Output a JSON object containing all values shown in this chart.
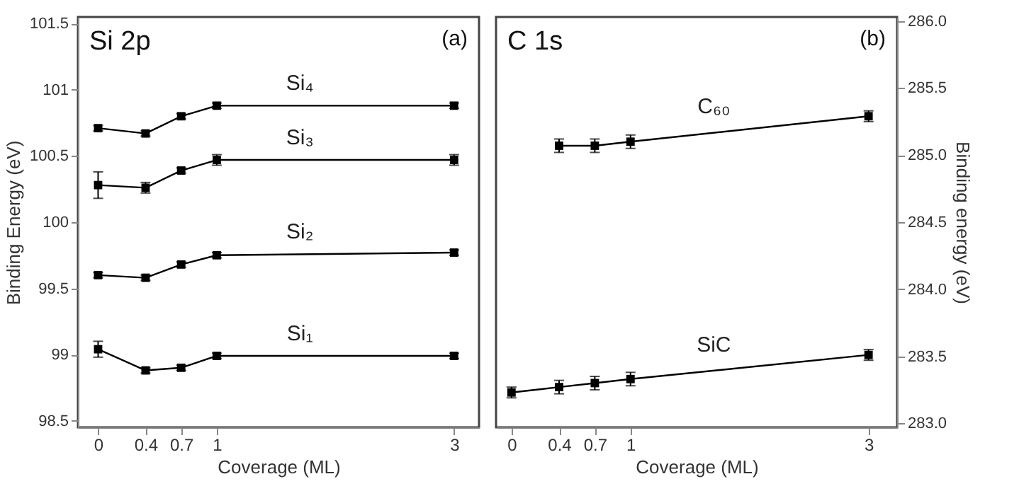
{
  "chart_data": [
    {
      "type": "line",
      "xlabel": "Coverage (ML)",
      "ylabel": "Binding Energy (eV)",
      "annotations": [
        "Si 2p",
        "(a)"
      ],
      "x": [
        0,
        0.4,
        0.7,
        1,
        3
      ],
      "xlim": [
        -0.17,
        3.21
      ],
      "xticks": [
        0,
        0.4,
        0.7,
        1,
        3
      ],
      "ylim": [
        98.45,
        101.55
      ],
      "yticks": [
        98.5,
        99,
        99.5,
        100,
        100.5,
        101,
        101.5
      ],
      "marker": "square",
      "line_style": "solid",
      "grid": false,
      "series": [
        {
          "name": "Si₄",
          "color": "#000000",
          "values": [
            100.71,
            100.67,
            100.8,
            100.88,
            100.88
          ],
          "errors": [
            0.02,
            0.02,
            0.02,
            0.02,
            0.02
          ]
        },
        {
          "name": "Si₃",
          "color": "#000000",
          "values": [
            100.28,
            100.26,
            100.39,
            100.47,
            100.47
          ],
          "errors": [
            0.1,
            0.04,
            0.02,
            0.04,
            0.04
          ]
        },
        {
          "name": "Si₂",
          "color": "#000000",
          "values": [
            99.6,
            99.58,
            99.68,
            99.75,
            99.77
          ],
          "errors": [
            0.02,
            0.02,
            0.02,
            0.02,
            0.02
          ]
        },
        {
          "name": "Si₁",
          "color": "#000000",
          "values": [
            99.04,
            98.88,
            98.9,
            98.99,
            98.99
          ],
          "errors": [
            0.06,
            0.02,
            0.02,
            0.02,
            0.02
          ]
        }
      ]
    },
    {
      "type": "line",
      "xlabel": "Coverage (ML)",
      "y2label": "Binding energy (eV)",
      "annotations": [
        "C 1s",
        "(b)"
      ],
      "xlim": [
        -0.13,
        3.24
      ],
      "xticks": [
        0,
        0.4,
        0.7,
        1,
        3
      ],
      "y2lim": [
        282.97,
        286.03
      ],
      "y2ticks": [
        {
          "value": 283,
          "label": "283.0"
        },
        283.5,
        {
          "value": 284,
          "label": "284.0"
        },
        284.5,
        {
          "value": 285,
          "label": "285.0"
        },
        285.5,
        {
          "value": 286,
          "label": "286.0"
        }
      ],
      "marker": "square",
      "line_style": "solid",
      "grid": false,
      "series": [
        {
          "name": "C₆₀",
          "color": "#000000",
          "axis": "y2",
          "x": [
            0.4,
            0.7,
            1,
            3
          ],
          "values": [
            285.07,
            285.07,
            285.1,
            285.29
          ],
          "errors": [
            0.05,
            0.05,
            0.05,
            0.04
          ]
        },
        {
          "name": "SiC",
          "color": "#000000",
          "axis": "y2",
          "x": [
            0,
            0.4,
            0.7,
            1,
            3
          ],
          "values": [
            283.23,
            283.27,
            283.3,
            283.33,
            283.51
          ],
          "errors": [
            0.04,
            0.05,
            0.05,
            0.05,
            0.04
          ]
        }
      ]
    }
  ]
}
